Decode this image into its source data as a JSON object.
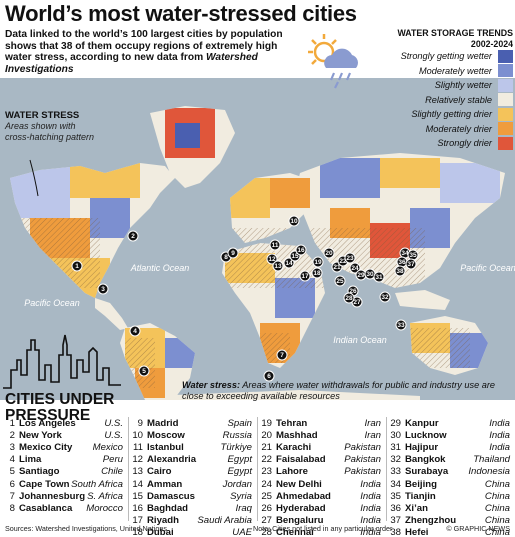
{
  "title": "World’s most water-stressed cities",
  "intro": {
    "text": "Data linked to the world’s 100 largest cities by population shows that 38 of them occupy regions of extremely high water stress, according to new data from",
    "source": "Watershed Investigations"
  },
  "water_stress_box": {
    "title": "WATER STRESS",
    "desc": "Areas shown with cross-hatching pattern"
  },
  "legend": {
    "title": "WATER STORAGE TRENDS 2002-2024",
    "items": [
      {
        "label": "Strongly getting wetter",
        "color": "#4a5fb0"
      },
      {
        "label": "Moderately wetter",
        "color": "#7c8fd0"
      },
      {
        "label": "Slightly wetter",
        "color": "#bcc6ea"
      },
      {
        "label": "Relatively stable",
        "color": "#f1ece0"
      },
      {
        "label": "Slightly getting drier",
        "color": "#f4c35a"
      },
      {
        "label": "Moderately drier",
        "color": "#ef9c3d"
      },
      {
        "label": "Strongly drier",
        "color": "#e0563a"
      }
    ]
  },
  "weather_icon": "cloud-sun-rain-icon",
  "oceans": {
    "atlantic": "Atlantic Ocean",
    "pacific_left": "Pacific Ocean",
    "pacific_right": "Pacific Ocean",
    "indian": "Indian Ocean"
  },
  "stress_note": {
    "label": "Water stress:",
    "text": "Areas where water withdrawals for public and industry use are close to exceeding available resources"
  },
  "cities_title": "CITIES UNDER PRESSURE",
  "cities": [
    {
      "n": "1",
      "name": "Los Angeles",
      "country": "U.S."
    },
    {
      "n": "2",
      "name": "New York",
      "country": "U.S."
    },
    {
      "n": "3",
      "name": "Mexico City",
      "country": "Mexico"
    },
    {
      "n": "4",
      "name": "Lima",
      "country": "Peru"
    },
    {
      "n": "5",
      "name": "Santiago",
      "country": "Chile"
    },
    {
      "n": "6",
      "name": "Cape Town",
      "country": "South Africa"
    },
    {
      "n": "7",
      "name": "Johannesburg",
      "country": "S. Africa"
    },
    {
      "n": "8",
      "name": "Casablanca",
      "country": "Morocco"
    },
    {
      "n": "9",
      "name": "Madrid",
      "country": "Spain"
    },
    {
      "n": "10",
      "name": "Moscow",
      "country": "Russia"
    },
    {
      "n": "11",
      "name": "Istanbul",
      "country": "Türkiye"
    },
    {
      "n": "12",
      "name": "Alexandria",
      "country": "Egypt"
    },
    {
      "n": "13",
      "name": "Cairo",
      "country": "Egypt"
    },
    {
      "n": "14",
      "name": "Amman",
      "country": "Jordan"
    },
    {
      "n": "15",
      "name": "Damascus",
      "country": "Syria"
    },
    {
      "n": "16",
      "name": "Baghdad",
      "country": "Iraq"
    },
    {
      "n": "17",
      "name": "Riyadh",
      "country": "Saudi Arabia"
    },
    {
      "n": "18",
      "name": "Dubai",
      "country": "UAE"
    },
    {
      "n": "19",
      "name": "Tehran",
      "country": "Iran"
    },
    {
      "n": "20",
      "name": "Mashhad",
      "country": "Iran"
    },
    {
      "n": "21",
      "name": "Karachi",
      "country": "Pakistan"
    },
    {
      "n": "22",
      "name": "Faisalabad",
      "country": "Pakistan"
    },
    {
      "n": "23",
      "name": "Lahore",
      "country": "Pakistan"
    },
    {
      "n": "24",
      "name": "New Delhi",
      "country": "India"
    },
    {
      "n": "25",
      "name": "Ahmedabad",
      "country": "India"
    },
    {
      "n": "26",
      "name": "Hyderabad",
      "country": "India"
    },
    {
      "n": "27",
      "name": "Bengaluru",
      "country": "India"
    },
    {
      "n": "28",
      "name": "Chennai",
      "country": "India"
    },
    {
      "n": "29",
      "name": "Kanpur",
      "country": "India"
    },
    {
      "n": "30",
      "name": "Lucknow",
      "country": "India"
    },
    {
      "n": "31",
      "name": "Hajipur",
      "country": "India"
    },
    {
      "n": "32",
      "name": "Bangkok",
      "country": "Thailand"
    },
    {
      "n": "33",
      "name": "Surabaya",
      "country": "Indonesia"
    },
    {
      "n": "34",
      "name": "Beijing",
      "country": "China"
    },
    {
      "n": "35",
      "name": "Tianjin",
      "country": "China"
    },
    {
      "n": "36",
      "name": "Xi’an",
      "country": "China"
    },
    {
      "n": "37",
      "name": "Zhengzhou",
      "country": "China"
    },
    {
      "n": "38",
      "name": "Hefei",
      "country": "China"
    }
  ],
  "footer": {
    "sources": "Sources: Watershed Investigations, United Nations",
    "note": "Note: Cities not listed in any particular order",
    "credit": "© GRAPHIC NEWS"
  }
}
